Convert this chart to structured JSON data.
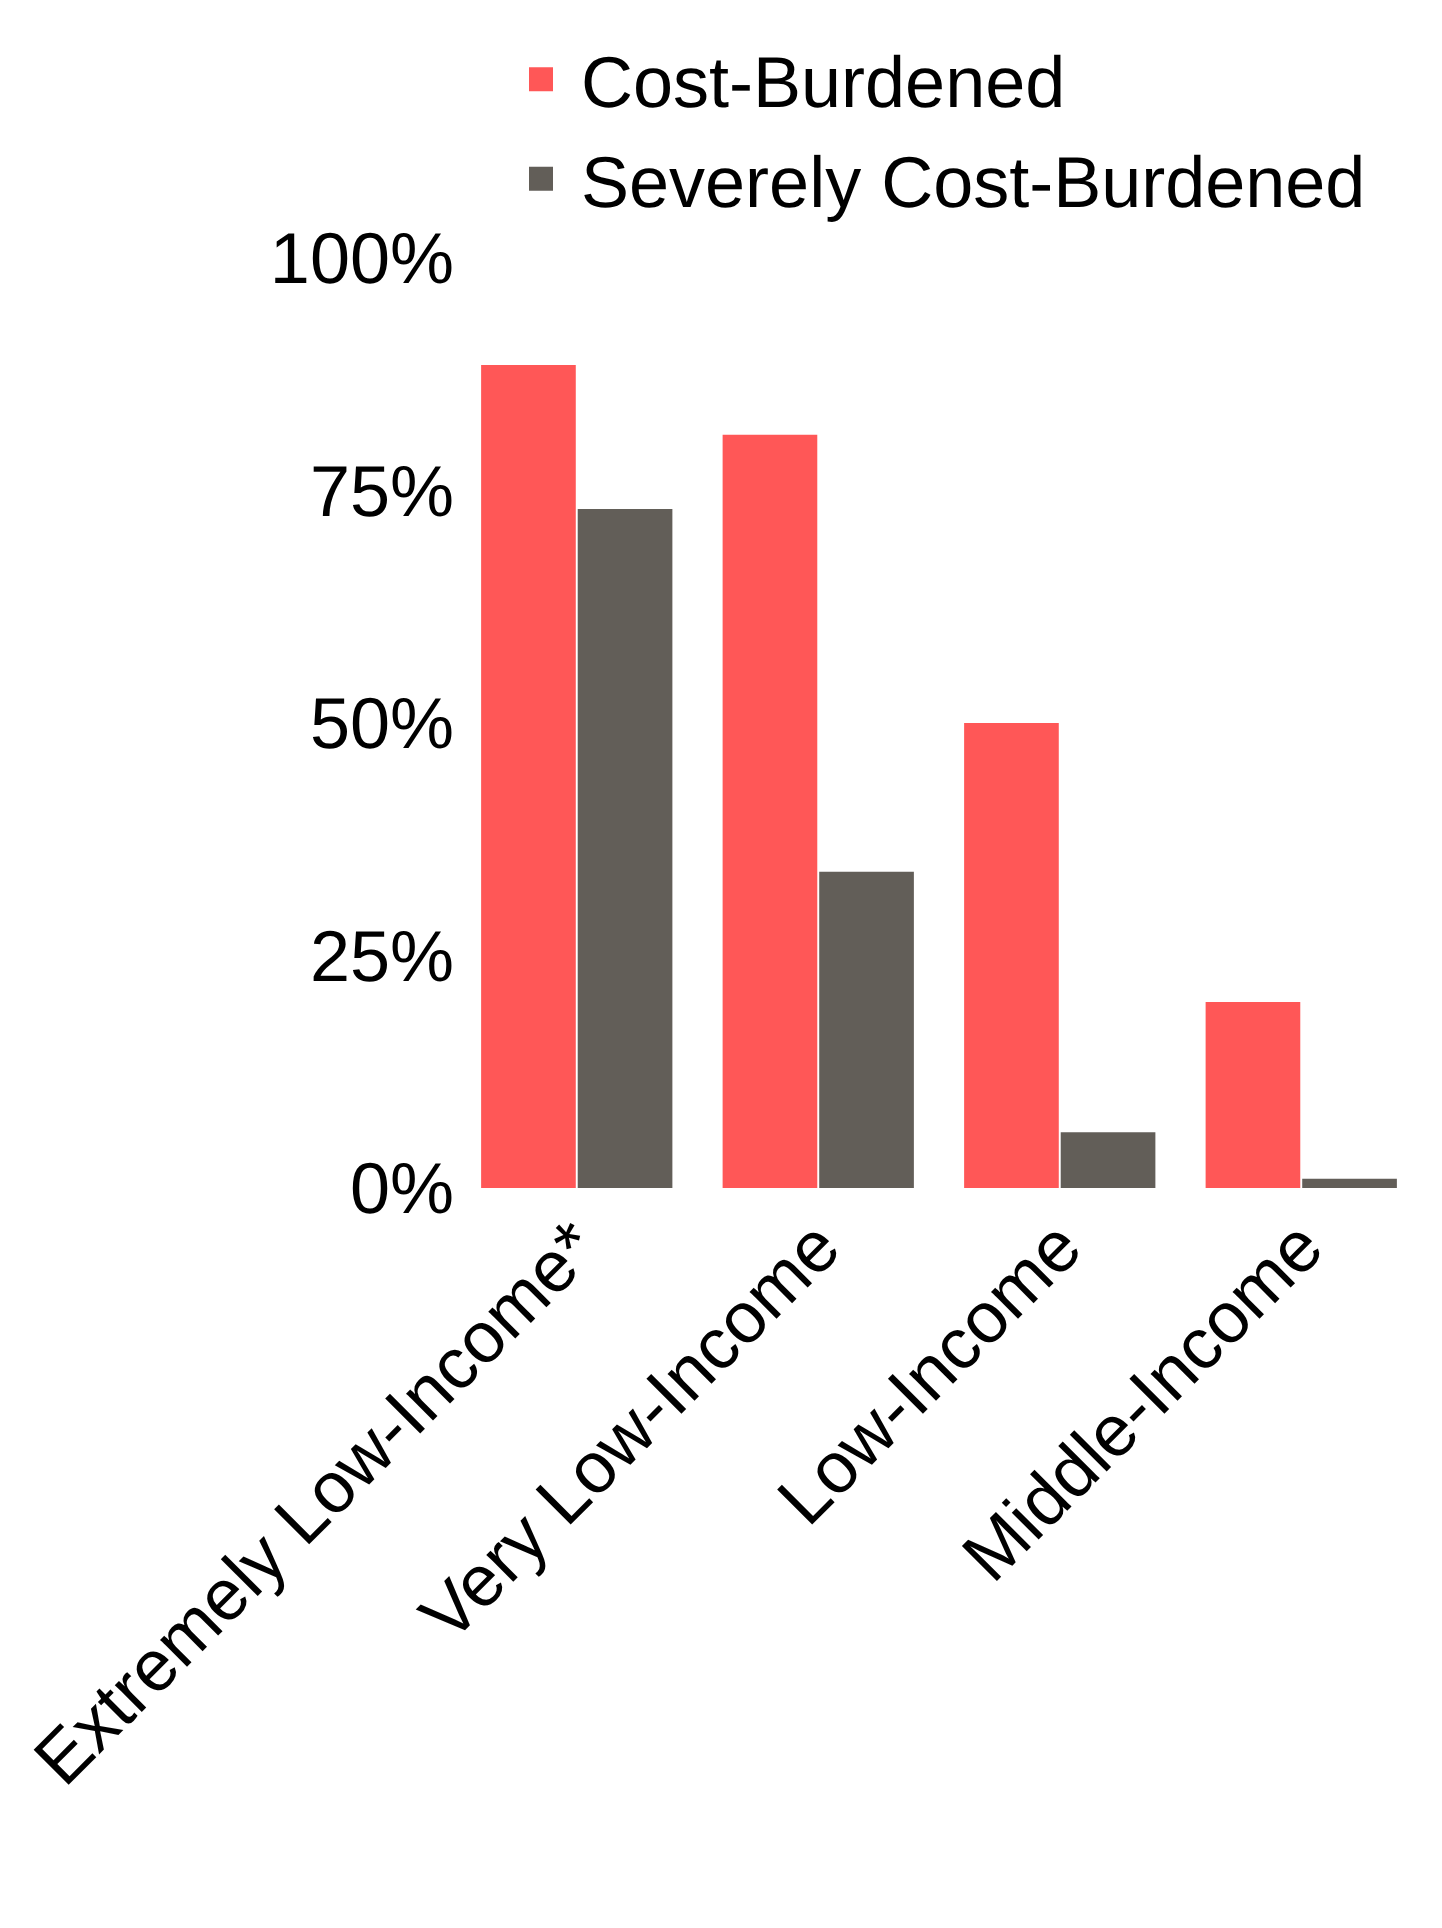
{
  "chart_data": {
    "type": "bar",
    "categories": [
      "Extremely Low-Income*",
      "Very Low-Income",
      "Low-Income",
      "Middle-Income"
    ],
    "series": [
      {
        "name": "Cost-Burdened",
        "color": "#ff5757",
        "values": [
          88.5,
          81,
          50,
          20
        ]
      },
      {
        "name": "Severely Cost-Burdened",
        "color": "#625e58",
        "values": [
          73,
          34,
          6,
          1
        ]
      }
    ],
    "ylim": [
      0,
      100
    ],
    "yticks": [
      {
        "value": 0,
        "label": "0%"
      },
      {
        "value": 25,
        "label": "25%"
      },
      {
        "value": 50,
        "label": "50%"
      },
      {
        "value": 75,
        "label": "75%"
      },
      {
        "value": 100,
        "label": "100%"
      }
    ],
    "grid": false,
    "legend": "top"
  }
}
